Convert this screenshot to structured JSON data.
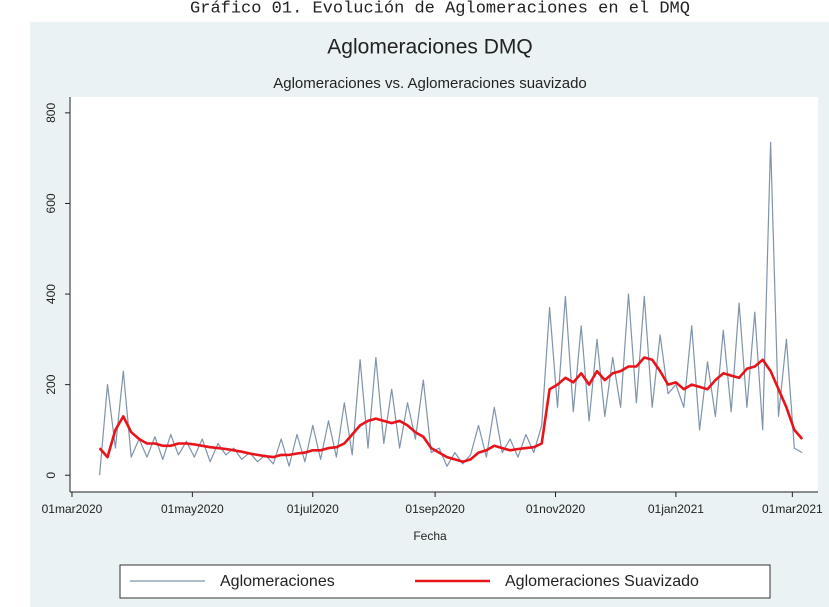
{
  "caption": "Gráfico 01. Evolución de Aglomeraciones en el DMQ",
  "chart_data": {
    "type": "line",
    "title": "Aglomeraciones DMQ",
    "subtitle": "Aglomeraciones vs. Aglomeraciones suavizado",
    "x_label": "Fecha",
    "x": [
      "2020-03-15",
      "2020-03-19",
      "2020-03-23",
      "2020-03-27",
      "2020-03-31",
      "2020-04-04",
      "2020-04-08",
      "2020-04-12",
      "2020-04-16",
      "2020-04-20",
      "2020-04-24",
      "2020-04-28",
      "2020-05-02",
      "2020-05-06",
      "2020-05-10",
      "2020-05-14",
      "2020-05-18",
      "2020-05-22",
      "2020-05-26",
      "2020-05-30",
      "2020-06-03",
      "2020-06-07",
      "2020-06-11",
      "2020-06-15",
      "2020-06-19",
      "2020-06-23",
      "2020-06-27",
      "2020-07-01",
      "2020-07-05",
      "2020-07-09",
      "2020-07-13",
      "2020-07-17",
      "2020-07-21",
      "2020-07-25",
      "2020-07-29",
      "2020-08-02",
      "2020-08-06",
      "2020-08-10",
      "2020-08-14",
      "2020-08-18",
      "2020-08-22",
      "2020-08-26",
      "2020-08-30",
      "2020-09-03",
      "2020-09-07",
      "2020-09-11",
      "2020-09-15",
      "2020-09-19",
      "2020-09-23",
      "2020-09-27",
      "2020-10-01",
      "2020-10-05",
      "2020-10-09",
      "2020-10-13",
      "2020-10-17",
      "2020-10-21",
      "2020-10-25",
      "2020-10-29",
      "2020-11-02",
      "2020-11-06",
      "2020-11-10",
      "2020-11-14",
      "2020-11-18",
      "2020-11-22",
      "2020-11-26",
      "2020-11-30",
      "2020-12-04",
      "2020-12-08",
      "2020-12-12",
      "2020-12-16",
      "2020-12-20",
      "2020-12-24",
      "2020-12-28",
      "2021-01-01",
      "2021-01-05",
      "2021-01-09",
      "2021-01-13",
      "2021-01-17",
      "2021-01-21",
      "2021-01-25",
      "2021-01-29",
      "2021-02-02",
      "2021-02-06",
      "2021-02-10",
      "2021-02-14",
      "2021-02-18",
      "2021-02-22",
      "2021-02-26",
      "2021-03-02",
      "2021-03-06"
    ],
    "series": [
      {
        "name": "Aglomeraciones",
        "color": "#7f93ab",
        "width": 1.2,
        "values": [
          0,
          200,
          60,
          230,
          40,
          80,
          40,
          85,
          35,
          90,
          45,
          75,
          40,
          80,
          30,
          70,
          45,
          60,
          35,
          50,
          30,
          45,
          25,
          80,
          20,
          90,
          30,
          110,
          35,
          120,
          40,
          160,
          45,
          255,
          60,
          260,
          70,
          190,
          60,
          160,
          80,
          210,
          50,
          60,
          20,
          50,
          25,
          45,
          110,
          40,
          150,
          50,
          80,
          40,
          90,
          50,
          110,
          370,
          150,
          395,
          140,
          330,
          120,
          300,
          130,
          260,
          150,
          400,
          160,
          395,
          150,
          310,
          180,
          200,
          150,
          330,
          100,
          250,
          130,
          320,
          140,
          380,
          150,
          360,
          100,
          735,
          130,
          300,
          60,
          50
        ]
      },
      {
        "name": "Aglomeraciones Suavizado",
        "color": "#e8141b",
        "width": 2.6,
        "values": [
          60,
          40,
          100,
          130,
          95,
          80,
          70,
          70,
          65,
          65,
          70,
          70,
          68,
          65,
          62,
          60,
          58,
          55,
          52,
          48,
          45,
          42,
          40,
          45,
          45,
          48,
          50,
          55,
          55,
          60,
          62,
          70,
          90,
          110,
          120,
          125,
          120,
          115,
          120,
          110,
          95,
          85,
          60,
          50,
          40,
          35,
          30,
          35,
          50,
          55,
          65,
          60,
          55,
          58,
          60,
          62,
          70,
          190,
          200,
          215,
          205,
          225,
          200,
          230,
          210,
          225,
          230,
          240,
          240,
          260,
          255,
          230,
          200,
          205,
          190,
          200,
          195,
          190,
          210,
          225,
          220,
          215,
          235,
          240,
          255,
          230,
          190,
          150,
          100,
          80
        ]
      }
    ],
    "xlim": [
      "2020-02-29",
      "2021-03-14"
    ],
    "xticks": [
      {
        "value": "2020-03-01",
        "label": "01mar2020"
      },
      {
        "value": "2020-05-01",
        "label": "01may2020"
      },
      {
        "value": "2020-07-01",
        "label": "01jul2020"
      },
      {
        "value": "2020-09-01",
        "label": "01sep2020"
      },
      {
        "value": "2020-11-01",
        "label": "01nov2020"
      },
      {
        "value": "2021-01-01",
        "label": "01jan2021"
      },
      {
        "value": "2021-03-01",
        "label": "01mar2021"
      }
    ],
    "ylim": [
      -37,
      835
    ],
    "yticks": [
      0,
      200,
      400,
      600,
      800
    ],
    "grid": false,
    "legend": "bottom"
  }
}
